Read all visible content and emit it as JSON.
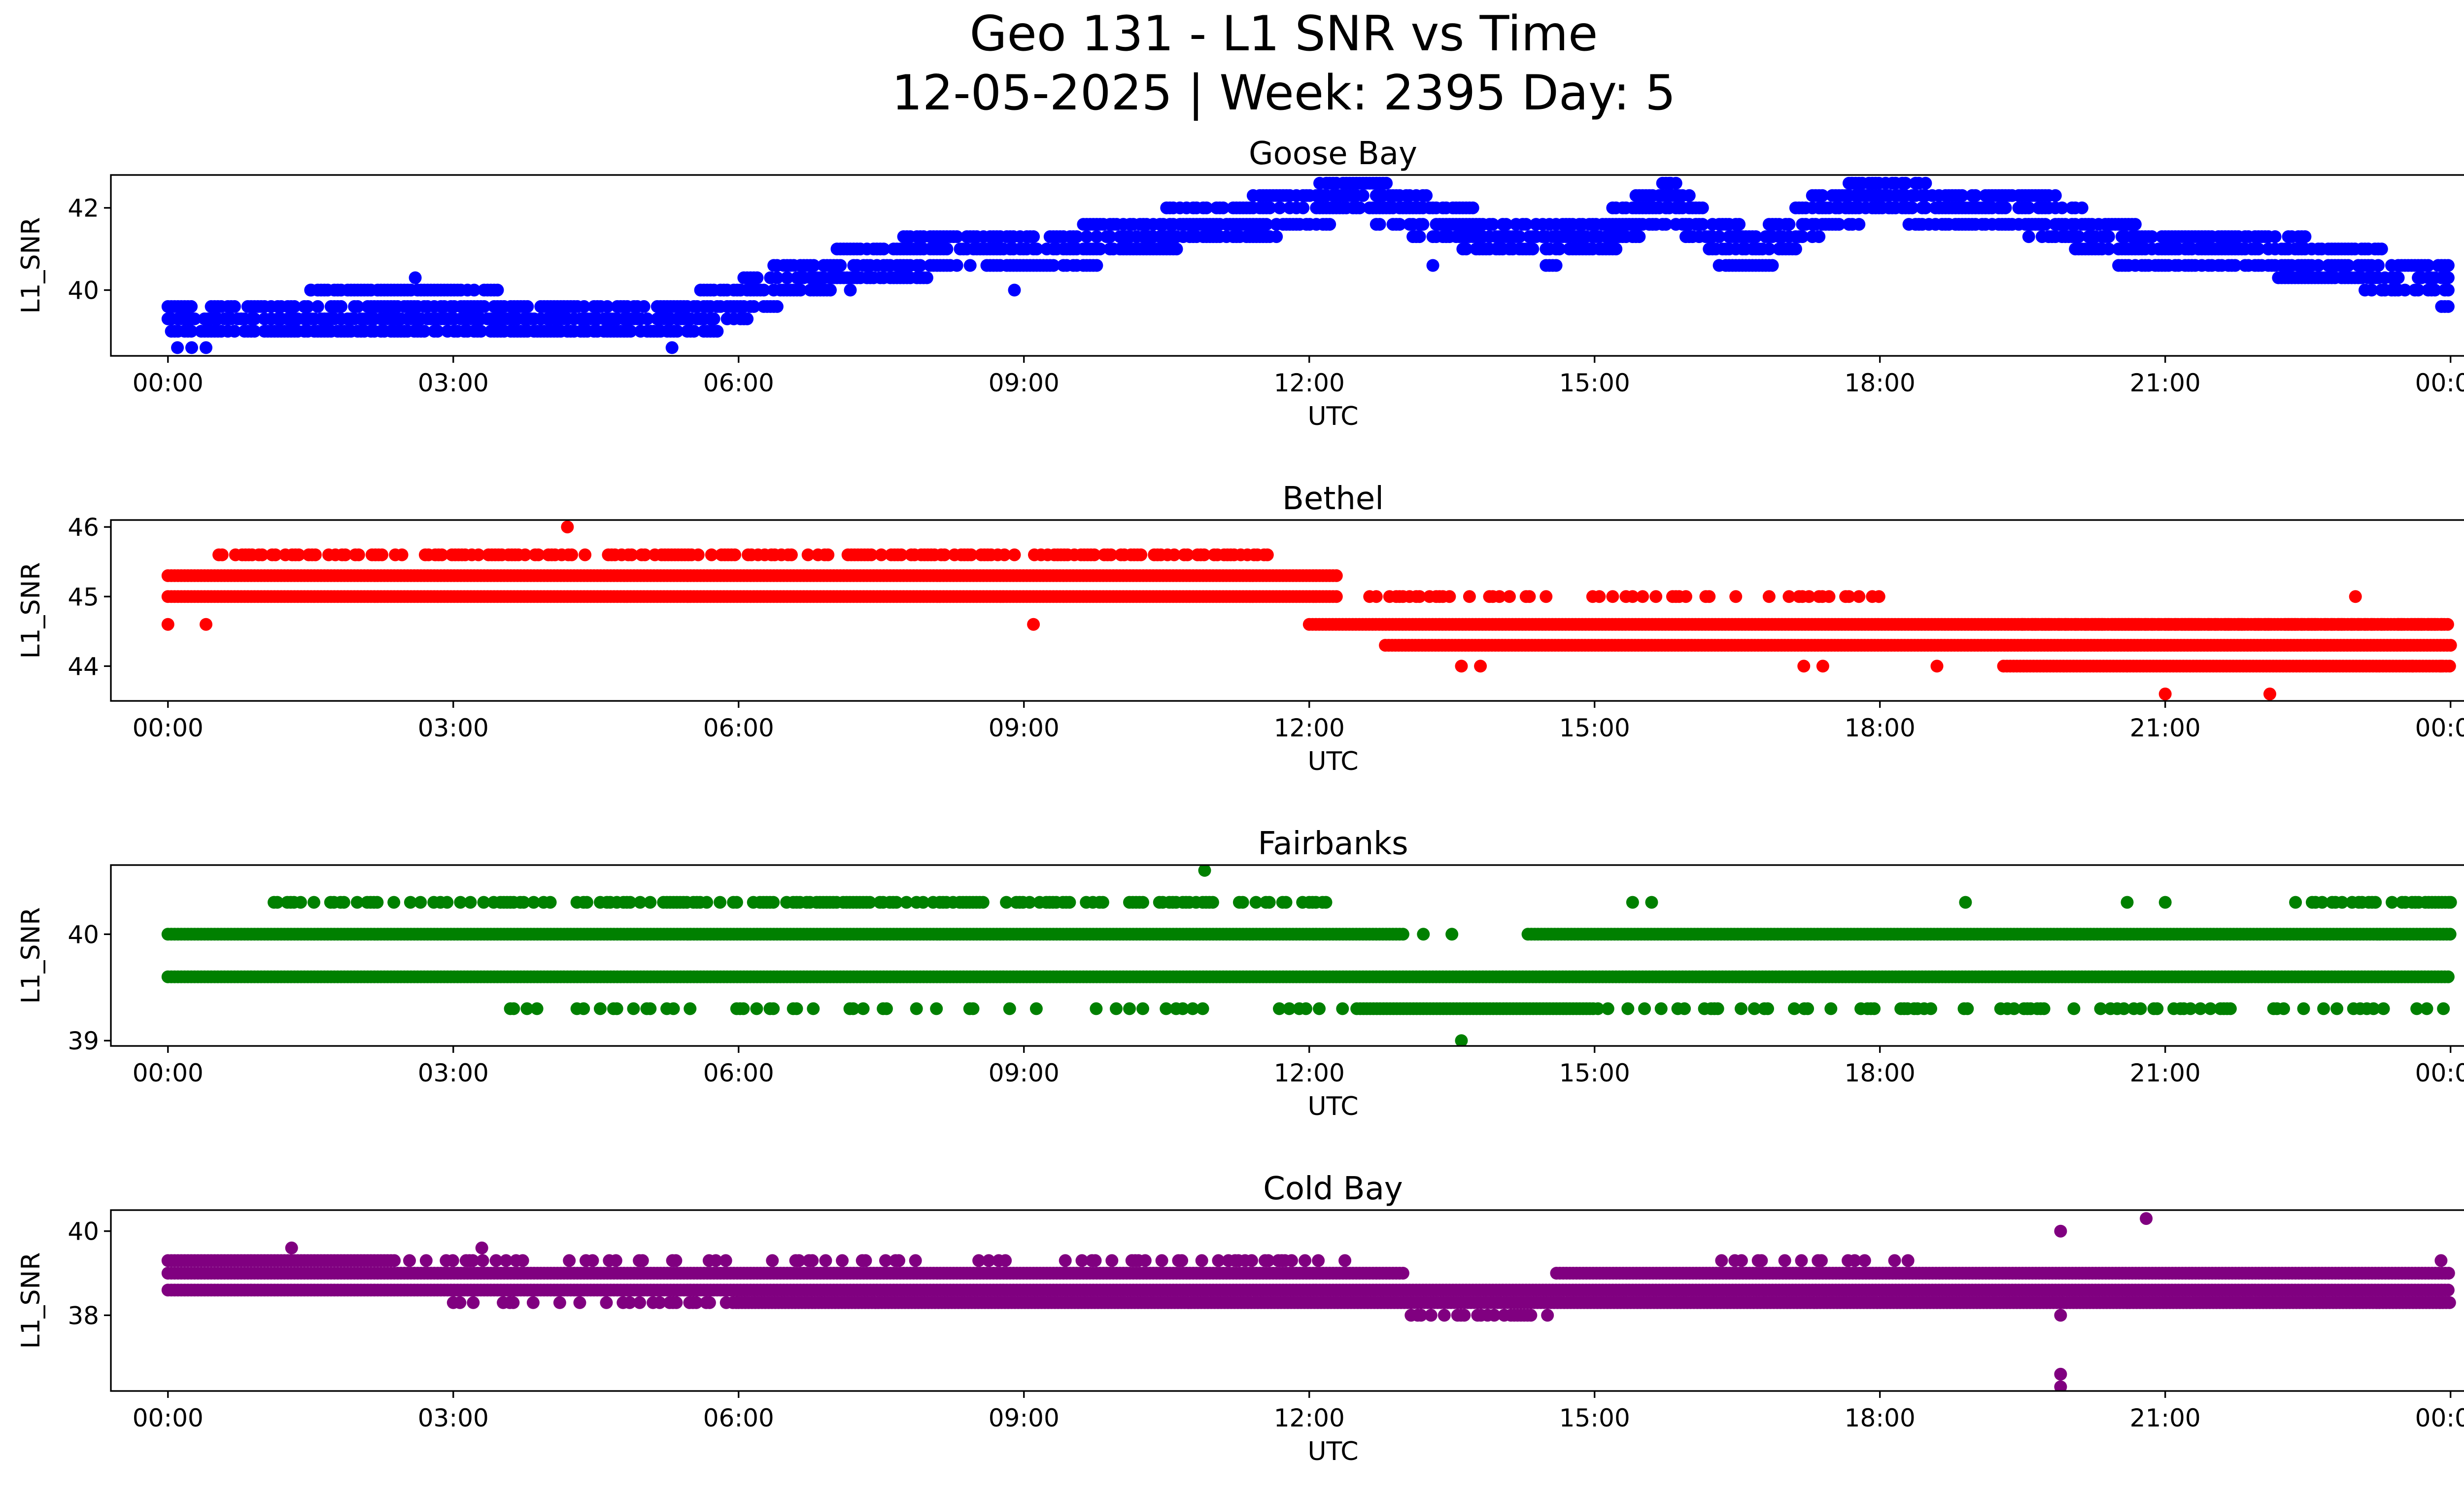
{
  "figure": {
    "title_line1": "Geo 131 - L1 SNR vs Time",
    "title_line2": "12-05-2025 | Week: 2395 Day: 5"
  },
  "chart_data": [
    {
      "type": "scatter",
      "title": "Goose Bay",
      "xlabel": "UTC",
      "ylabel": "L1_SNR",
      "color": "#0000ff",
      "xlim": [
        -0.6,
        25.1
      ],
      "ylim": [
        38.4,
        42.8
      ],
      "yticks": [
        40,
        42
      ],
      "xticks": [
        0,
        3,
        6,
        9,
        12,
        15,
        18,
        21,
        24
      ],
      "xticklabels": [
        "00:00",
        "03:00",
        "06:00",
        "09:00",
        "12:00",
        "15:00",
        "18:00",
        "21:00",
        "00:00"
      ],
      "trend": [
        [
          0,
          39.2
        ],
        [
          1,
          39.4
        ],
        [
          2,
          39.5
        ],
        [
          3,
          39.5
        ],
        [
          4,
          39.4
        ],
        [
          5,
          39.3
        ],
        [
          5.8,
          39.5
        ],
        [
          6.5,
          40.2
        ],
        [
          7.5,
          40.7
        ],
        [
          8.5,
          41
        ],
        [
          9.5,
          41
        ],
        [
          10.3,
          41.4
        ],
        [
          11,
          41.6
        ],
        [
          11.8,
          41.9
        ],
        [
          12.5,
          42.3
        ],
        [
          13,
          41.9
        ],
        [
          13.5,
          41.6
        ],
        [
          14,
          41.3
        ],
        [
          14.6,
          41.1
        ],
        [
          15.2,
          41.5
        ],
        [
          15.8,
          42.2
        ],
        [
          16.3,
          41.1
        ],
        [
          16.8,
          41.0
        ],
        [
          17.3,
          41.8
        ],
        [
          18,
          42.3
        ],
        [
          18.6,
          42
        ],
        [
          19.2,
          41.9
        ],
        [
          19.8,
          41.8
        ],
        [
          20.4,
          41.2
        ],
        [
          21,
          40.9
        ],
        [
          22,
          40.9
        ],
        [
          23,
          40.6
        ],
        [
          24,
          40.1
        ]
      ],
      "levels": [
        38.6,
        39.0,
        39.3,
        39.6,
        40.0,
        40.3,
        40.6,
        41.0,
        41.3,
        41.6,
        42.0,
        42.3,
        42.6
      ],
      "spread": 0.55,
      "outliers": [
        [
          0.1,
          38.6
        ],
        [
          0.25,
          38.6
        ],
        [
          0.4,
          38.6
        ],
        [
          5.3,
          38.6
        ],
        [
          2.6,
          40.3
        ],
        [
          1.5,
          40.0
        ],
        [
          13.3,
          40.6
        ],
        [
          8.9,
          40.0
        ],
        [
          15.8,
          42.6
        ],
        [
          17.7,
          42.6
        ]
      ]
    },
    {
      "type": "scatter",
      "title": "Bethel",
      "xlabel": "UTC",
      "ylabel": "L1_SNR",
      "color": "#ff0000",
      "xlim": [
        -0.6,
        25.1
      ],
      "ylim": [
        43.5,
        46.1
      ],
      "yticks": [
        44,
        45,
        46
      ],
      "xticks": [
        0,
        3,
        6,
        9,
        12,
        15,
        18,
        21,
        24
      ],
      "xticklabels": [
        "00:00",
        "03:00",
        "06:00",
        "09:00",
        "12:00",
        "15:00",
        "18:00",
        "21:00",
        "00:00"
      ],
      "bands": [
        {
          "from": 0,
          "to": 12.3,
          "values": [
            45.0,
            45.3
          ]
        },
        {
          "from": 12.0,
          "to": 24,
          "values": [
            44.6
          ]
        },
        {
          "from": 12.8,
          "to": 24,
          "values": [
            44.3
          ]
        },
        {
          "from": 19.3,
          "to": 24,
          "values": [
            44.0
          ]
        }
      ],
      "sparse": [
        {
          "from": 0.5,
          "to": 11.6,
          "value": 45.6,
          "prob": 0.55
        },
        {
          "from": 12.6,
          "to": 18.0,
          "value": 45.0,
          "prob": 0.35
        },
        {
          "from": 19.5,
          "to": 24,
          "value": 44.6,
          "prob": 0.5
        }
      ],
      "outliers": [
        [
          0,
          44.6
        ],
        [
          0.4,
          44.6
        ],
        [
          4.2,
          46.0
        ],
        [
          9.1,
          44.6
        ],
        [
          13.6,
          44.0
        ],
        [
          13.8,
          44.0
        ],
        [
          17.2,
          44.0
        ],
        [
          17.4,
          44.0
        ],
        [
          18.6,
          44.0
        ],
        [
          21.0,
          43.6
        ],
        [
          22.1,
          43.6
        ],
        [
          23.0,
          45.0
        ],
        [
          23.6,
          44.0
        ],
        [
          23.9,
          44.0
        ]
      ]
    },
    {
      "type": "scatter",
      "title": "Fairbanks",
      "xlabel": "UTC",
      "ylabel": "L1_SNR",
      "color": "#008000",
      "xlim": [
        -0.6,
        25.1
      ],
      "ylim": [
        38.95,
        40.65
      ],
      "yticks": [
        39,
        40
      ],
      "xticks": [
        0,
        3,
        6,
        9,
        12,
        15,
        18,
        21,
        24
      ],
      "xticklabels": [
        "00:00",
        "03:00",
        "06:00",
        "09:00",
        "12:00",
        "15:00",
        "18:00",
        "21:00",
        "00:00"
      ],
      "bands": [
        {
          "from": 0,
          "to": 13.0,
          "values": [
            40.0
          ]
        },
        {
          "from": 14.3,
          "to": 24,
          "values": [
            40.0
          ]
        },
        {
          "from": 0,
          "to": 24,
          "values": [
            39.6
          ]
        },
        {
          "from": 12.5,
          "to": 15.0,
          "values": [
            39.3
          ]
        }
      ],
      "sparse": [
        {
          "from": 0.8,
          "to": 12.3,
          "value": 40.3,
          "prob": 0.45
        },
        {
          "from": 22.3,
          "to": 24,
          "value": 40.3,
          "prob": 0.6
        },
        {
          "from": 3.6,
          "to": 12.4,
          "value": 39.3,
          "prob": 0.2
        },
        {
          "from": 15.0,
          "to": 24,
          "value": 39.3,
          "prob": 0.28
        }
      ],
      "outliers": [
        [
          10.9,
          40.6
        ],
        [
          13.6,
          39.0
        ],
        [
          13.2,
          40.0
        ],
        [
          13.5,
          40.0
        ],
        [
          15.4,
          40.3
        ],
        [
          15.6,
          40.3
        ],
        [
          18.9,
          40.3
        ],
        [
          20.6,
          40.3
        ],
        [
          21.0,
          40.3
        ],
        [
          24.0,
          40.3
        ]
      ]
    },
    {
      "type": "scatter",
      "title": "Cold Bay",
      "xlabel": "UTC",
      "ylabel": "L1_SNR",
      "color": "#800080",
      "xlim": [
        -0.6,
        25.1
      ],
      "ylim": [
        36.2,
        40.5
      ],
      "yticks": [
        38,
        40
      ],
      "xticks": [
        0,
        3,
        6,
        9,
        12,
        15,
        18,
        21,
        24
      ],
      "xticklabels": [
        "00:00",
        "03:00",
        "06:00",
        "09:00",
        "12:00",
        "15:00",
        "18:00",
        "21:00",
        "00:00"
      ],
      "bands": [
        {
          "from": 0,
          "to": 13.0,
          "values": [
            39.0
          ]
        },
        {
          "from": 14.6,
          "to": 24,
          "values": [
            39.0
          ]
        },
        {
          "from": 0,
          "to": 24,
          "values": [
            38.6
          ]
        },
        {
          "from": 6.0,
          "to": 24,
          "values": [
            38.3
          ]
        },
        {
          "from": 0,
          "to": 2.4,
          "values": [
            39.3
          ]
        }
      ],
      "sparse": [
        {
          "from": 2.4,
          "to": 12.5,
          "value": 39.3,
          "prob": 0.3
        },
        {
          "from": 3.0,
          "to": 6.0,
          "value": 38.3,
          "prob": 0.3
        },
        {
          "from": 13.0,
          "to": 14.6,
          "value": 38.0,
          "prob": 0.5
        },
        {
          "from": 16.3,
          "to": 18.3,
          "value": 39.3,
          "prob": 0.3
        }
      ],
      "outliers": [
        [
          1.3,
          39.6
        ],
        [
          3.3,
          39.6
        ],
        [
          19.9,
          40.0
        ],
        [
          19.9,
          38.0
        ],
        [
          19.9,
          36.6
        ],
        [
          19.9,
          36.3
        ],
        [
          20.8,
          40.3
        ],
        [
          23.9,
          39.3
        ]
      ]
    }
  ]
}
